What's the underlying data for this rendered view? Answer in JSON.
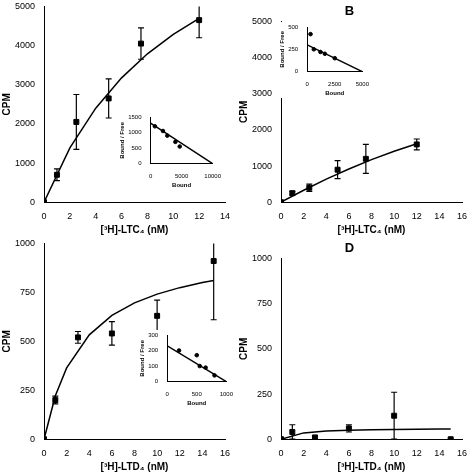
{
  "chart_data": [
    {
      "type": "scatter",
      "x_label": "[³H]-LTC₄ (nM)",
      "y_label": "CPM",
      "xlim": [
        0,
        14
      ],
      "xticks": [
        0,
        2,
        4,
        6,
        8,
        10,
        12,
        14
      ],
      "ylim": [
        0,
        5000
      ],
      "yticks": [
        0,
        1000,
        2000,
        3000,
        4000,
        5000
      ],
      "grid": false,
      "series": [
        {
          "type": "scatter",
          "marker": "square",
          "color": "#000000",
          "x": [
            0,
            1,
            2.5,
            5,
            7.5,
            12
          ],
          "values": [
            0,
            700,
            2050,
            2650,
            4050,
            4650
          ],
          "errors": [
            0,
            150,
            700,
            500,
            400,
            450
          ]
        },
        {
          "type": "line",
          "line_style": "solid",
          "color": "#000000",
          "x": [
            0,
            2,
            4,
            6,
            8,
            10,
            12
          ],
          "values": [
            0,
            1385,
            2400,
            3176,
            3789,
            4286,
            4696
          ]
        }
      ]
    },
    {
      "type": "scatter",
      "x_label": "Bound",
      "y_label": "Bound / Free",
      "xlim": [
        0,
        10000
      ],
      "xticks": [
        0,
        5000,
        10000
      ],
      "ylim": [
        0,
        1500
      ],
      "yticks": [
        0,
        500,
        1000,
        1500
      ],
      "grid": false,
      "series": [
        {
          "type": "scatter",
          "marker": "circle",
          "color": "#000000",
          "x": [
            700,
            2000,
            2700,
            4000,
            4700
          ],
          "values": [
            1200,
            1050,
            900,
            700,
            550
          ]
        },
        {
          "type": "line",
          "line_style": "solid",
          "color": "#000000",
          "x": [
            0,
            10000
          ],
          "values": [
            1300,
            0
          ]
        }
      ]
    },
    {
      "type": "scatter",
      "title": "B",
      "x_label": "[³H]-LTC₄ (nM)",
      "y_label": "CPM",
      "xlim": [
        0,
        16
      ],
      "xticks": [
        0,
        2,
        4,
        6,
        8,
        10,
        12,
        14,
        16
      ],
      "ylim": [
        0,
        5000
      ],
      "yticks": [
        0,
        1000,
        2000,
        3000,
        4000,
        5000
      ],
      "grid": false,
      "series": [
        {
          "type": "scatter",
          "marker": "square",
          "color": "#000000",
          "x": [
            0,
            1,
            2.5,
            5,
            7.5,
            12
          ],
          "values": [
            0,
            250,
            400,
            900,
            1200,
            1600
          ],
          "errors": [
            0,
            50,
            100,
            250,
            400,
            150
          ]
        },
        {
          "type": "line",
          "line_style": "solid",
          "color": "#000000",
          "x": [
            0,
            2,
            4,
            6,
            8,
            10,
            12
          ],
          "values": [
            0,
            330,
            640,
            920,
            1180,
            1410,
            1620
          ]
        }
      ]
    },
    {
      "type": "scatter",
      "x_label": "Bound",
      "y_label": "Bound / Free",
      "xlim": [
        0,
        5000
      ],
      "xticks": [
        0,
        2500,
        5000
      ],
      "ylim": [
        0,
        500
      ],
      "yticks": [
        0,
        250,
        500
      ],
      "grid": false,
      "series": [
        {
          "type": "scatter",
          "marker": "circle",
          "color": "#000000",
          "x": [
            300,
            600,
            1200,
            1600,
            2500
          ],
          "values": [
            420,
            250,
            220,
            200,
            150
          ]
        },
        {
          "type": "line",
          "line_style": "solid",
          "color": "#000000",
          "x": [
            0,
            5000
          ],
          "values": [
            300,
            0
          ]
        }
      ]
    },
    {
      "type": "scatter",
      "x_label": "[³H]-LTD₄ (nM)",
      "y_label": "CPM",
      "xlim": [
        0,
        16
      ],
      "xticks": [
        0,
        2,
        4,
        6,
        8,
        10,
        12,
        14,
        16
      ],
      "ylim": [
        0,
        1000
      ],
      "yticks": [
        0,
        250,
        500,
        750,
        1000
      ],
      "grid": false,
      "series": [
        {
          "type": "scatter",
          "marker": "square",
          "color": "#000000",
          "x": [
            0,
            1,
            3,
            6,
            10,
            15
          ],
          "values": [
            0,
            200,
            520,
            540,
            630,
            910
          ],
          "errors": [
            0,
            20,
            30,
            60,
            80,
            300
          ]
        },
        {
          "type": "line",
          "line_style": "solid",
          "color": "#000000",
          "x": [
            0,
            1,
            2,
            4,
            6,
            8,
            10,
            12,
            14,
            15
          ],
          "values": [
            0,
            222,
            364,
            533,
            632,
            696,
            741,
            774,
            800,
            811
          ]
        }
      ]
    },
    {
      "type": "scatter",
      "x_label": "Bound",
      "y_label": "Bound / Free",
      "xlim": [
        0,
        1000
      ],
      "xticks": [
        0,
        500,
        1000
      ],
      "ylim": [
        0,
        300
      ],
      "yticks": [
        0,
        100,
        200,
        300
      ],
      "grid": false,
      "series": [
        {
          "type": "scatter",
          "marker": "circle",
          "color": "#000000",
          "x": [
            200,
            500,
            550,
            650,
            800
          ],
          "values": [
            200,
            170,
            100,
            90,
            40
          ]
        },
        {
          "type": "line",
          "line_style": "solid",
          "color": "#000000",
          "x": [
            0,
            1000
          ],
          "values": [
            230,
            0
          ]
        }
      ]
    },
    {
      "type": "scatter",
      "title": "D",
      "x_label": "[³H]-LTD₄ (nM)",
      "y_label": "CPM",
      "xlim": [
        0,
        16
      ],
      "xticks": [
        0,
        2,
        4,
        6,
        8,
        10,
        12,
        14,
        16
      ],
      "ylim": [
        0,
        1000
      ],
      "yticks": [
        0,
        250,
        500,
        750,
        1000
      ],
      "grid": false,
      "series": [
        {
          "type": "scatter",
          "marker": "square",
          "color": "#000000",
          "x": [
            0,
            1,
            3,
            6,
            10,
            15
          ],
          "values": [
            0,
            40,
            10,
            60,
            130,
            0
          ],
          "errors": [
            0,
            40,
            10,
            20,
            130,
            0
          ]
        },
        {
          "type": "line",
          "line_style": "solid",
          "color": "#000000",
          "x": [
            0,
            2,
            4,
            6,
            8,
            10,
            12,
            14,
            15
          ],
          "values": [
            0,
            35,
            45,
            50,
            52,
            54,
            55,
            56,
            56
          ]
        }
      ]
    }
  ]
}
